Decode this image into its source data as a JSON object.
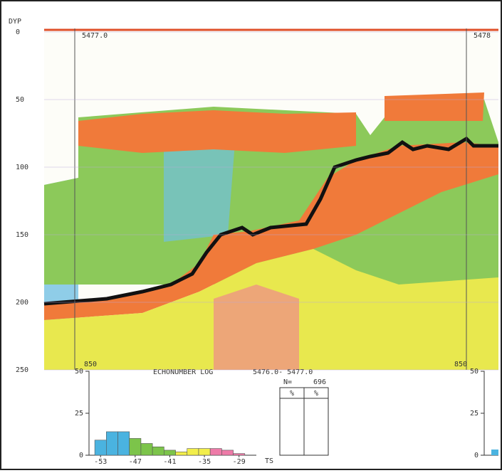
{
  "echogram": {
    "depth_label": "DYP",
    "depth_range": [
      0,
      250
    ],
    "depth_ticks": [
      0,
      50,
      100,
      150,
      200,
      250
    ],
    "marks_top": [
      "5477.0",
      "5478"
    ],
    "marks_bottom": [
      "850",
      "850"
    ]
  },
  "histogram": {
    "title": "ECHONUMBER LOG",
    "range": "5476.0- 5477.0",
    "n_label": "N=",
    "n": 696,
    "ylim": [
      0,
      50
    ],
    "yticks": [
      0,
      25,
      50
    ],
    "xlim": [
      -55,
      -26
    ],
    "xticks": [
      -53,
      -47,
      -41,
      -35,
      -29
    ],
    "xlabel": "TS",
    "bins": [
      -54,
      -52,
      -50,
      -48,
      -46,
      -44,
      -42,
      -40,
      -38,
      -36,
      -34,
      -32,
      -30,
      -28
    ],
    "values": [
      9,
      14,
      14,
      10,
      7,
      5,
      3,
      2,
      4,
      4,
      4,
      3,
      1
    ],
    "colors": [
      "#4ab3e0",
      "#4ab3e0",
      "#4ab3e0",
      "#7cc44a",
      "#7cc44a",
      "#7cc44a",
      "#7cc44a",
      "#f2ee4a",
      "#f2ee4a",
      "#f2ee4a",
      "#ee7aa8",
      "#ee7aa8",
      "#ee7aa8"
    ],
    "table_headers": [
      "%",
      "%"
    ]
  },
  "right_histogram": {
    "ylim": [
      0,
      50
    ],
    "yticks": [
      0,
      25,
      50
    ]
  }
}
